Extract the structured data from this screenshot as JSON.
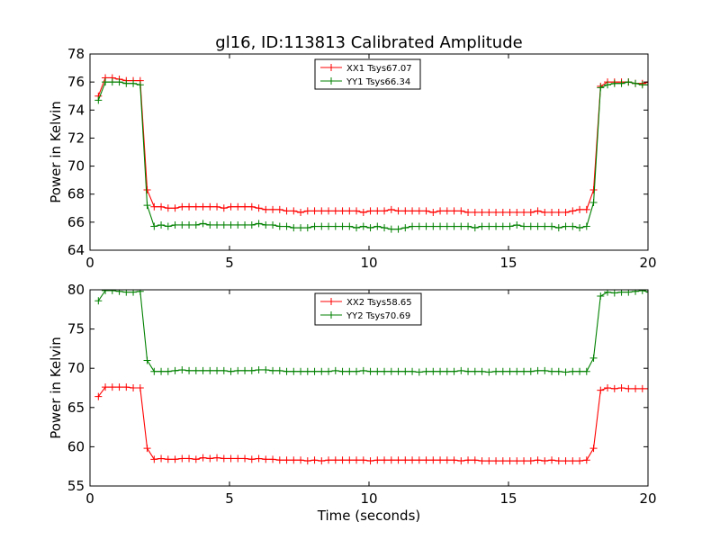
{
  "chart_data": [
    {
      "type": "line",
      "title": "gl16, ID:113813 Calibrated Amplitude",
      "xlabel": "",
      "ylabel": "Power in Kelvin",
      "xlim": [
        0,
        20
      ],
      "ylim": [
        64,
        78
      ],
      "xticks": [
        0,
        5,
        10,
        15,
        20
      ],
      "yticks": [
        64,
        66,
        68,
        70,
        72,
        74,
        76,
        78
      ],
      "legend_position": "top-center",
      "grid": false,
      "x": [
        0.3,
        0.55,
        0.8,
        1.05,
        1.3,
        1.55,
        1.8,
        2.05,
        2.3,
        2.55,
        2.8,
        3.05,
        3.3,
        3.55,
        3.8,
        4.05,
        4.3,
        4.55,
        4.8,
        5.05,
        5.3,
        5.55,
        5.8,
        6.05,
        6.3,
        6.55,
        6.8,
        7.05,
        7.3,
        7.55,
        7.8,
        8.05,
        8.3,
        8.55,
        8.8,
        9.05,
        9.3,
        9.55,
        9.8,
        10.05,
        10.3,
        10.55,
        10.8,
        11.05,
        11.3,
        11.55,
        11.8,
        12.05,
        12.3,
        12.55,
        12.8,
        13.05,
        13.3,
        13.55,
        13.8,
        14.05,
        14.3,
        14.55,
        14.8,
        15.05,
        15.3,
        15.55,
        15.8,
        16.05,
        16.3,
        16.55,
        16.8,
        17.05,
        17.3,
        17.55,
        17.8,
        18.05,
        18.3,
        18.55,
        18.8,
        19.05,
        19.3,
        19.55,
        19.8,
        20.05
      ],
      "series": [
        {
          "name": "XX1 Tsys67.07",
          "color": "#ff0000",
          "values": [
            75.0,
            76.3,
            76.3,
            76.2,
            76.1,
            76.1,
            76.1,
            68.3,
            67.1,
            67.1,
            67.0,
            67.0,
            67.1,
            67.1,
            67.1,
            67.1,
            67.1,
            67.1,
            67.0,
            67.1,
            67.1,
            67.1,
            67.1,
            67.0,
            66.9,
            66.9,
            66.9,
            66.8,
            66.8,
            66.7,
            66.8,
            66.8,
            66.8,
            66.8,
            66.8,
            66.8,
            66.8,
            66.8,
            66.7,
            66.8,
            66.8,
            66.8,
            66.9,
            66.8,
            66.8,
            66.8,
            66.8,
            66.8,
            66.7,
            66.8,
            66.8,
            66.8,
            66.8,
            66.7,
            66.7,
            66.7,
            66.7,
            66.7,
            66.7,
            66.7,
            66.7,
            66.7,
            66.7,
            66.8,
            66.7,
            66.7,
            66.7,
            66.7,
            66.8,
            66.9,
            66.9,
            68.3,
            75.7,
            76.0,
            76.0,
            76.0,
            76.0,
            75.9,
            75.9,
            76.0
          ]
        },
        {
          "name": "YY1 Tsys66.34",
          "color": "#008000",
          "values": [
            74.7,
            76.0,
            76.0,
            76.0,
            75.9,
            75.9,
            75.8,
            67.2,
            65.7,
            65.8,
            65.7,
            65.8,
            65.8,
            65.8,
            65.8,
            65.9,
            65.8,
            65.8,
            65.8,
            65.8,
            65.8,
            65.8,
            65.8,
            65.9,
            65.8,
            65.8,
            65.7,
            65.7,
            65.6,
            65.6,
            65.6,
            65.7,
            65.7,
            65.7,
            65.7,
            65.7,
            65.7,
            65.6,
            65.7,
            65.6,
            65.7,
            65.6,
            65.5,
            65.5,
            65.6,
            65.7,
            65.7,
            65.7,
            65.7,
            65.7,
            65.7,
            65.7,
            65.7,
            65.7,
            65.6,
            65.7,
            65.7,
            65.7,
            65.7,
            65.7,
            65.8,
            65.7,
            65.7,
            65.7,
            65.7,
            65.7,
            65.6,
            65.7,
            65.7,
            65.6,
            65.7,
            67.4,
            75.6,
            75.8,
            75.9,
            75.9,
            76.0,
            75.9,
            75.8,
            75.8
          ]
        }
      ]
    },
    {
      "type": "line",
      "title": "",
      "xlabel": "Time (seconds)",
      "ylabel": "Power in Kelvin",
      "xlim": [
        0,
        20
      ],
      "ylim": [
        55,
        80
      ],
      "xticks": [
        0,
        5,
        10,
        15,
        20
      ],
      "yticks": [
        55,
        60,
        65,
        70,
        75,
        80
      ],
      "legend_position": "top-center",
      "grid": false,
      "x": [
        0.3,
        0.55,
        0.8,
        1.05,
        1.3,
        1.55,
        1.8,
        2.05,
        2.3,
        2.55,
        2.8,
        3.05,
        3.3,
        3.55,
        3.8,
        4.05,
        4.3,
        4.55,
        4.8,
        5.05,
        5.3,
        5.55,
        5.8,
        6.05,
        6.3,
        6.55,
        6.8,
        7.05,
        7.3,
        7.55,
        7.8,
        8.05,
        8.3,
        8.55,
        8.8,
        9.05,
        9.3,
        9.55,
        9.8,
        10.05,
        10.3,
        10.55,
        10.8,
        11.05,
        11.3,
        11.55,
        11.8,
        12.05,
        12.3,
        12.55,
        12.8,
        13.05,
        13.3,
        13.55,
        13.8,
        14.05,
        14.3,
        14.55,
        14.8,
        15.05,
        15.3,
        15.55,
        15.8,
        16.05,
        16.3,
        16.55,
        16.8,
        17.05,
        17.3,
        17.55,
        17.8,
        18.05,
        18.3,
        18.55,
        18.8,
        19.05,
        19.3,
        19.55,
        19.8,
        20.05
      ],
      "series": [
        {
          "name": "XX2 Tsys58.65",
          "color": "#ff0000",
          "values": [
            66.4,
            67.6,
            67.6,
            67.6,
            67.6,
            67.5,
            67.5,
            59.8,
            58.4,
            58.5,
            58.4,
            58.4,
            58.5,
            58.5,
            58.4,
            58.6,
            58.5,
            58.6,
            58.5,
            58.5,
            58.5,
            58.5,
            58.4,
            58.5,
            58.4,
            58.4,
            58.3,
            58.3,
            58.3,
            58.3,
            58.2,
            58.3,
            58.2,
            58.3,
            58.3,
            58.3,
            58.3,
            58.3,
            58.3,
            58.2,
            58.3,
            58.3,
            58.3,
            58.3,
            58.3,
            58.3,
            58.3,
            58.3,
            58.3,
            58.3,
            58.3,
            58.3,
            58.2,
            58.3,
            58.3,
            58.2,
            58.2,
            58.2,
            58.2,
            58.2,
            58.2,
            58.2,
            58.2,
            58.3,
            58.2,
            58.3,
            58.2,
            58.2,
            58.2,
            58.2,
            58.3,
            59.8,
            67.2,
            67.5,
            67.4,
            67.5,
            67.4,
            67.4,
            67.4,
            67.4
          ]
        },
        {
          "name": "YY2 Tsys70.69",
          "color": "#008000",
          "values": [
            78.6,
            79.9,
            79.9,
            79.8,
            79.7,
            79.7,
            79.8,
            71.0,
            69.6,
            69.6,
            69.6,
            69.7,
            69.8,
            69.7,
            69.7,
            69.7,
            69.7,
            69.7,
            69.7,
            69.6,
            69.7,
            69.7,
            69.7,
            69.8,
            69.8,
            69.7,
            69.7,
            69.6,
            69.6,
            69.6,
            69.6,
            69.6,
            69.6,
            69.6,
            69.7,
            69.6,
            69.6,
            69.6,
            69.7,
            69.6,
            69.6,
            69.6,
            69.6,
            69.6,
            69.6,
            69.6,
            69.5,
            69.6,
            69.6,
            69.6,
            69.6,
            69.6,
            69.7,
            69.6,
            69.6,
            69.6,
            69.5,
            69.6,
            69.6,
            69.6,
            69.6,
            69.6,
            69.6,
            69.7,
            69.7,
            69.6,
            69.6,
            69.5,
            69.6,
            69.6,
            69.6,
            71.3,
            79.2,
            79.7,
            79.6,
            79.7,
            79.7,
            79.8,
            79.9,
            79.7
          ]
        }
      ]
    }
  ]
}
